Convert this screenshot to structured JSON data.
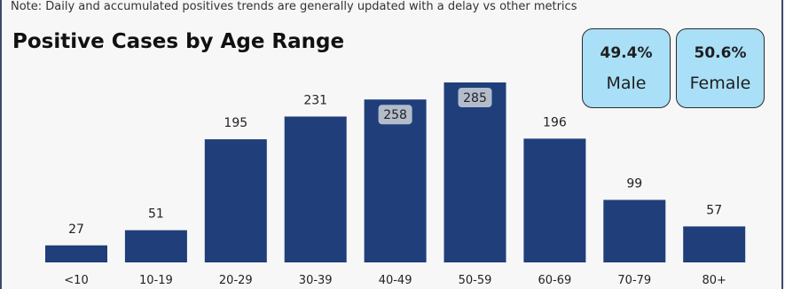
{
  "note": "Note: Daily and accumulated positives trends are generally updated with a delay vs other metrics",
  "cards": [
    {
      "pct": "49.4%",
      "label": "Male"
    },
    {
      "pct": "50.6%",
      "label": "Female"
    }
  ],
  "colors": {
    "bar": "#203f7a",
    "card": "#a9dff7",
    "highlight_label_bg": "#b3bccb"
  },
  "chart_data": {
    "type": "bar",
    "title": "Positive Cases by Age Range",
    "categories": [
      "<10",
      "10-19",
      "20-29",
      "30-39",
      "40-49",
      "50-59",
      "60-69",
      "70-79",
      "80+"
    ],
    "values": [
      27,
      51,
      195,
      231,
      258,
      285,
      196,
      99,
      57
    ],
    "data_labels": [
      "27",
      "51",
      "195",
      "231",
      "258",
      "285",
      "196",
      "99",
      "57"
    ],
    "inside_label_categories": [
      "40-49",
      "50-59"
    ],
    "xlabel": "",
    "ylabel": "",
    "ylim": [
      0,
      285
    ],
    "grid": false,
    "legend": "none"
  }
}
